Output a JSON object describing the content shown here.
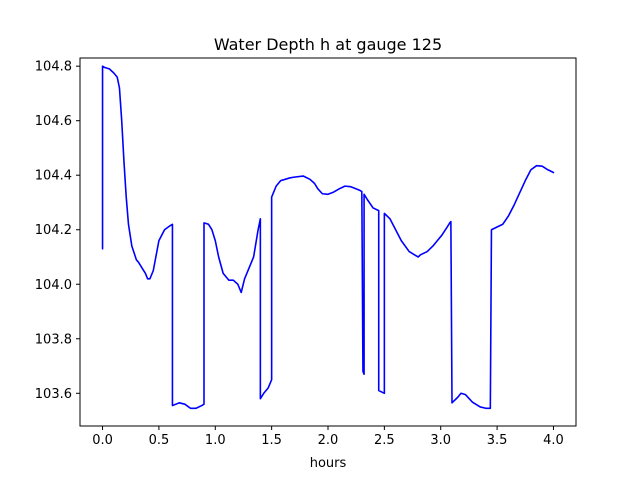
{
  "chart_data": {
    "type": "line",
    "title": "Water Depth h at gauge 125",
    "xlabel": "hours",
    "ylabel": "",
    "xlim": [
      -0.2,
      4.2
    ],
    "ylim": [
      103.48,
      104.83
    ],
    "xticks": [
      0.0,
      0.5,
      1.0,
      1.5,
      2.0,
      2.5,
      3.0,
      3.5,
      4.0
    ],
    "xtick_labels": [
      "0.0",
      "0.5",
      "1.0",
      "1.5",
      "2.0",
      "2.5",
      "3.0",
      "3.5",
      "4.0"
    ],
    "yticks": [
      103.6,
      103.8,
      104.0,
      104.2,
      104.4,
      104.6,
      104.8
    ],
    "ytick_labels": [
      "103.6",
      "103.8",
      "104.0",
      "104.2",
      "104.4",
      "104.6",
      "104.8"
    ],
    "grid": false,
    "series": [
      {
        "color": "#0000ff",
        "x": [
          0.0,
          0.0,
          0.0,
          0.02,
          0.06,
          0.1,
          0.13,
          0.15,
          0.17,
          0.19,
          0.21,
          0.23,
          0.26,
          0.3,
          0.32,
          0.35,
          0.38,
          0.4,
          0.42,
          0.45,
          0.5,
          0.55,
          0.6,
          0.62,
          0.62,
          0.68,
          0.73,
          0.78,
          0.83,
          0.88,
          0.9,
          0.9,
          0.94,
          0.97,
          1.0,
          1.03,
          1.07,
          1.12,
          1.16,
          1.2,
          1.23,
          1.26,
          1.3,
          1.34,
          1.38,
          1.4,
          1.4,
          1.43,
          1.47,
          1.5,
          1.5,
          1.54,
          1.58,
          1.62,
          1.66,
          1.7,
          1.78,
          1.84,
          1.88,
          1.91,
          1.95,
          2.0,
          2.05,
          2.1,
          2.15,
          2.2,
          2.25,
          2.28,
          2.3,
          2.31,
          2.32,
          2.32,
          2.35,
          2.4,
          2.45,
          2.45,
          2.5,
          2.5,
          2.55,
          2.6,
          2.65,
          2.72,
          2.78,
          2.8,
          2.82,
          2.88,
          2.93,
          2.97,
          3.01,
          3.05,
          3.08,
          3.09,
          3.1,
          3.15,
          3.18,
          3.22,
          3.28,
          3.35,
          3.4,
          3.43,
          3.44,
          3.45,
          3.5,
          3.55,
          3.6,
          3.65,
          3.7,
          3.75,
          3.8,
          3.85,
          3.9,
          3.95,
          4.0
        ],
        "y": [
          104.35,
          104.13,
          104.8,
          104.795,
          104.79,
          104.775,
          104.76,
          104.72,
          104.6,
          104.45,
          104.32,
          104.22,
          104.14,
          104.09,
          104.08,
          104.06,
          104.04,
          104.02,
          104.02,
          104.05,
          104.16,
          104.2,
          104.215,
          104.22,
          103.555,
          103.565,
          103.56,
          103.545,
          103.545,
          103.555,
          103.56,
          104.225,
          104.22,
          104.2,
          104.16,
          104.1,
          104.04,
          104.015,
          104.015,
          104.0,
          103.97,
          104.02,
          104.06,
          104.1,
          104.2,
          104.24,
          103.58,
          103.6,
          103.62,
          103.65,
          104.32,
          104.36,
          104.38,
          104.385,
          104.39,
          104.393,
          104.397,
          104.385,
          104.37,
          104.35,
          104.332,
          104.33,
          104.338,
          104.35,
          104.36,
          104.358,
          104.35,
          104.345,
          104.34,
          103.68,
          103.67,
          104.33,
          104.31,
          104.28,
          104.27,
          103.61,
          103.6,
          104.26,
          104.24,
          104.2,
          104.16,
          104.12,
          104.105,
          104.1,
          104.108,
          104.12,
          104.14,
          104.16,
          104.18,
          104.205,
          104.225,
          104.23,
          103.565,
          103.585,
          103.6,
          103.595,
          103.568,
          103.55,
          103.545,
          103.545,
          103.545,
          104.2,
          104.21,
          104.22,
          104.25,
          104.29,
          104.335,
          104.38,
          104.42,
          104.435,
          104.433,
          104.42,
          104.41
        ]
      }
    ]
  }
}
